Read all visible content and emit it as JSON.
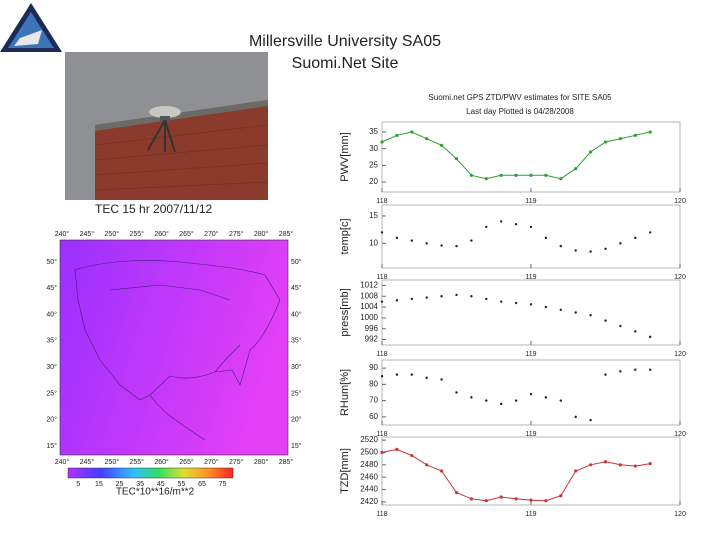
{
  "slide": {
    "title_line1": "Millersville University SA05",
    "title_line2": "Suomi.Net Site"
  },
  "map": {
    "title": "TEC 15 hr 2007/11/12",
    "lon_labels": [
      "240°",
      "245°",
      "250°",
      "255°",
      "260°",
      "265°",
      "270°",
      "275°",
      "280°",
      "285°"
    ],
    "lat_labels": [
      "50°",
      "45°",
      "40°",
      "35°",
      "30°",
      "25°",
      "20°",
      "15°"
    ],
    "colorbar_ticks": [
      "5",
      "15",
      "25",
      "35",
      "45",
      "55",
      "65",
      "75"
    ],
    "colorbar_label": "TEC*10**16/m**2"
  },
  "chart_data": [
    {
      "type": "line",
      "title": "Suomi.net GPS ZTD/PWV estimates for SITE SA05",
      "subtitle": "Last day Plotted is 04/28/2008",
      "ylabel": "PWV[mm]",
      "color": "#2ca02c",
      "x": [
        118.0,
        118.1,
        118.2,
        118.3,
        118.4,
        118.5,
        118.6,
        118.7,
        118.8,
        118.9,
        119.0,
        119.1,
        119.2,
        119.3,
        119.4,
        119.5,
        119.6,
        119.7,
        119.8
      ],
      "values": [
        32,
        34,
        35,
        33,
        31,
        27,
        22,
        21,
        22,
        22,
        22,
        22,
        21,
        24,
        29,
        32,
        33,
        34,
        35
      ],
      "xlim": [
        118,
        120
      ],
      "xticks": [
        118,
        119,
        120
      ],
      "ylim": [
        17,
        38
      ],
      "yticks": [
        20,
        25,
        30,
        35
      ]
    },
    {
      "type": "scatter",
      "ylabel": "temp[c]",
      "color": "#222222",
      "x": [
        118.0,
        118.1,
        118.2,
        118.3,
        118.4,
        118.5,
        118.6,
        118.7,
        118.8,
        118.9,
        119.0,
        119.1,
        119.2,
        119.3,
        119.4,
        119.5,
        119.6,
        119.7,
        119.8
      ],
      "values": [
        12,
        11,
        10.5,
        10,
        9.6,
        9.5,
        10.5,
        13,
        14,
        13.5,
        13,
        11,
        9.5,
        8.7,
        8.5,
        9,
        10,
        11,
        12
      ],
      "xlim": [
        118,
        120
      ],
      "xticks": [
        118,
        119,
        120
      ],
      "ylim": [
        5.5,
        17
      ],
      "yticks": [
        10,
        15
      ]
    },
    {
      "type": "scatter",
      "ylabel": "press[mb]",
      "color": "#222222",
      "x": [
        118.0,
        118.1,
        118.2,
        118.3,
        118.4,
        118.5,
        118.6,
        118.7,
        118.8,
        118.9,
        119.0,
        119.1,
        119.2,
        119.3,
        119.4,
        119.5,
        119.6,
        119.7,
        119.8
      ],
      "values": [
        1006,
        1006.5,
        1007,
        1007.5,
        1008,
        1008.5,
        1008,
        1007,
        1006,
        1005.5,
        1005,
        1004,
        1003,
        1002,
        1001,
        999,
        997,
        995,
        993
      ],
      "xlim": [
        118,
        120
      ],
      "xticks": [
        118,
        119,
        120
      ],
      "ylim": [
        990,
        1014
      ],
      "yticks": [
        992,
        996,
        1000,
        1004,
        1008,
        1012
      ]
    },
    {
      "type": "scatter",
      "ylabel": "RHum[%]",
      "color": "#222222",
      "x": [
        118.0,
        118.1,
        118.2,
        118.3,
        118.4,
        118.5,
        118.6,
        118.7,
        118.8,
        118.9,
        119.0,
        119.1,
        119.2,
        119.3,
        119.4,
        119.5,
        119.6,
        119.7,
        119.8
      ],
      "values": [
        85,
        86,
        86,
        84,
        83,
        75,
        72,
        70,
        68,
        70,
        74,
        72,
        70,
        60,
        58,
        86,
        88,
        89,
        89
      ],
      "xlim": [
        118,
        120
      ],
      "xticks": [
        118,
        119,
        120
      ],
      "ylim": [
        55,
        95
      ],
      "yticks": [
        60,
        70,
        80,
        90
      ]
    },
    {
      "type": "line",
      "ylabel": "TZD[mm]",
      "color": "#cc3333",
      "x": [
        118.0,
        118.1,
        118.2,
        118.3,
        118.4,
        118.5,
        118.6,
        118.7,
        118.8,
        118.9,
        119.0,
        119.1,
        119.2,
        119.3,
        119.4,
        119.5,
        119.6,
        119.7,
        119.8
      ],
      "values": [
        2500,
        2505,
        2495,
        2480,
        2470,
        2435,
        2425,
        2422,
        2428,
        2425,
        2423,
        2422,
        2430,
        2470,
        2480,
        2485,
        2480,
        2478,
        2482
      ],
      "xlim": [
        118,
        120
      ],
      "xticks": [
        118,
        119,
        120
      ],
      "ylim": [
        2415,
        2525
      ],
      "yticks": [
        2420,
        2440,
        2460,
        2480,
        2500,
        2520
      ]
    }
  ]
}
